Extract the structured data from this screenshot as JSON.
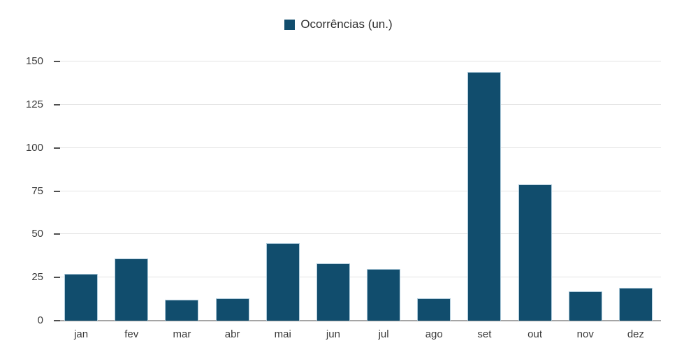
{
  "legend": {
    "label": "Ocorrências (un.)",
    "swatch_icon": "filled-square-icon",
    "swatch_color": "#114d6d"
  },
  "chart_data": {
    "type": "bar",
    "title": "",
    "xlabel": "",
    "ylabel": "",
    "categories": [
      "jan",
      "fev",
      "mar",
      "abr",
      "mai",
      "jun",
      "jul",
      "ago",
      "set",
      "out",
      "nov",
      "dez"
    ],
    "series": [
      {
        "name": "Ocorrências (un.)",
        "values": [
          27,
          36,
          12,
          13,
          45,
          33,
          30,
          13,
          144,
          79,
          17,
          19
        ],
        "color": "#114d6d"
      }
    ],
    "ylim": [
      0,
      150
    ],
    "yticks": [
      0,
      25,
      50,
      75,
      100,
      125,
      150
    ],
    "grid": true,
    "legend_position": "top-center",
    "colors": {
      "bar_fill": "#114d6d",
      "bar_stroke": "#cde3f0",
      "gridline": "#e4e4e4",
      "axis_line": "#a5a5a5",
      "tick_mark": "#4f4f4f",
      "label_text": "#3a3a3a",
      "legend_text": "#2e2e2e",
      "background": "#ffffff"
    }
  }
}
